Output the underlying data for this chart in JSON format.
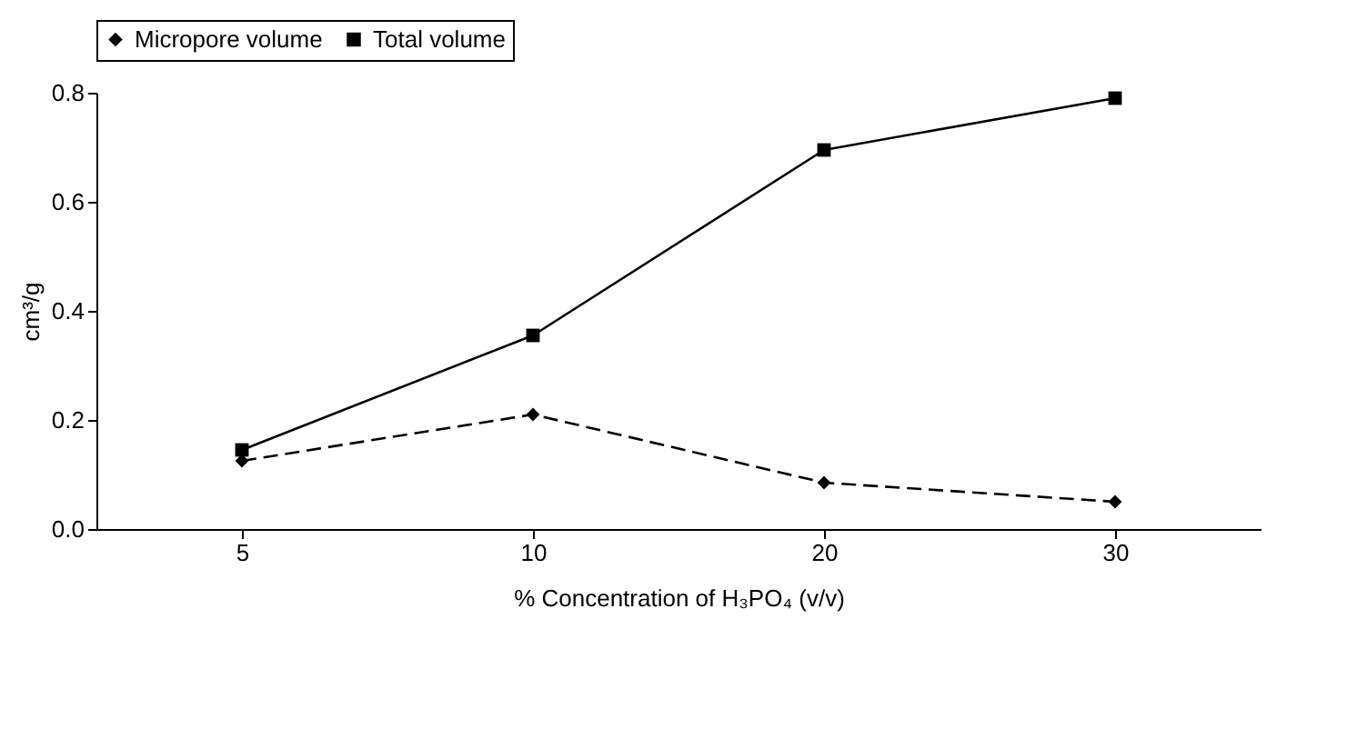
{
  "chart_data": {
    "type": "line",
    "xlabel": "% Concentration of H₃PO₄ (v/v)",
    "ylabel": "cm³/g",
    "categories": [
      "5",
      "10",
      "20",
      "30"
    ],
    "series": [
      {
        "name": "Micropore volume",
        "color": "#000000",
        "marker": "diamond",
        "line_style": "dashed",
        "values": [
          0.125,
          0.21,
          0.085,
          0.05
        ]
      },
      {
        "name": "Total volume",
        "color": "#000000",
        "marker": "square",
        "line_style": "solid",
        "values": [
          0.145,
          0.355,
          0.695,
          0.79
        ]
      }
    ],
    "ylim": [
      0,
      0.8
    ],
    "yticks": [
      {
        "value": 0,
        "label": "0.0"
      },
      0.2,
      0.4,
      0.6,
      0.8
    ],
    "grid": false,
    "legend": "top"
  }
}
